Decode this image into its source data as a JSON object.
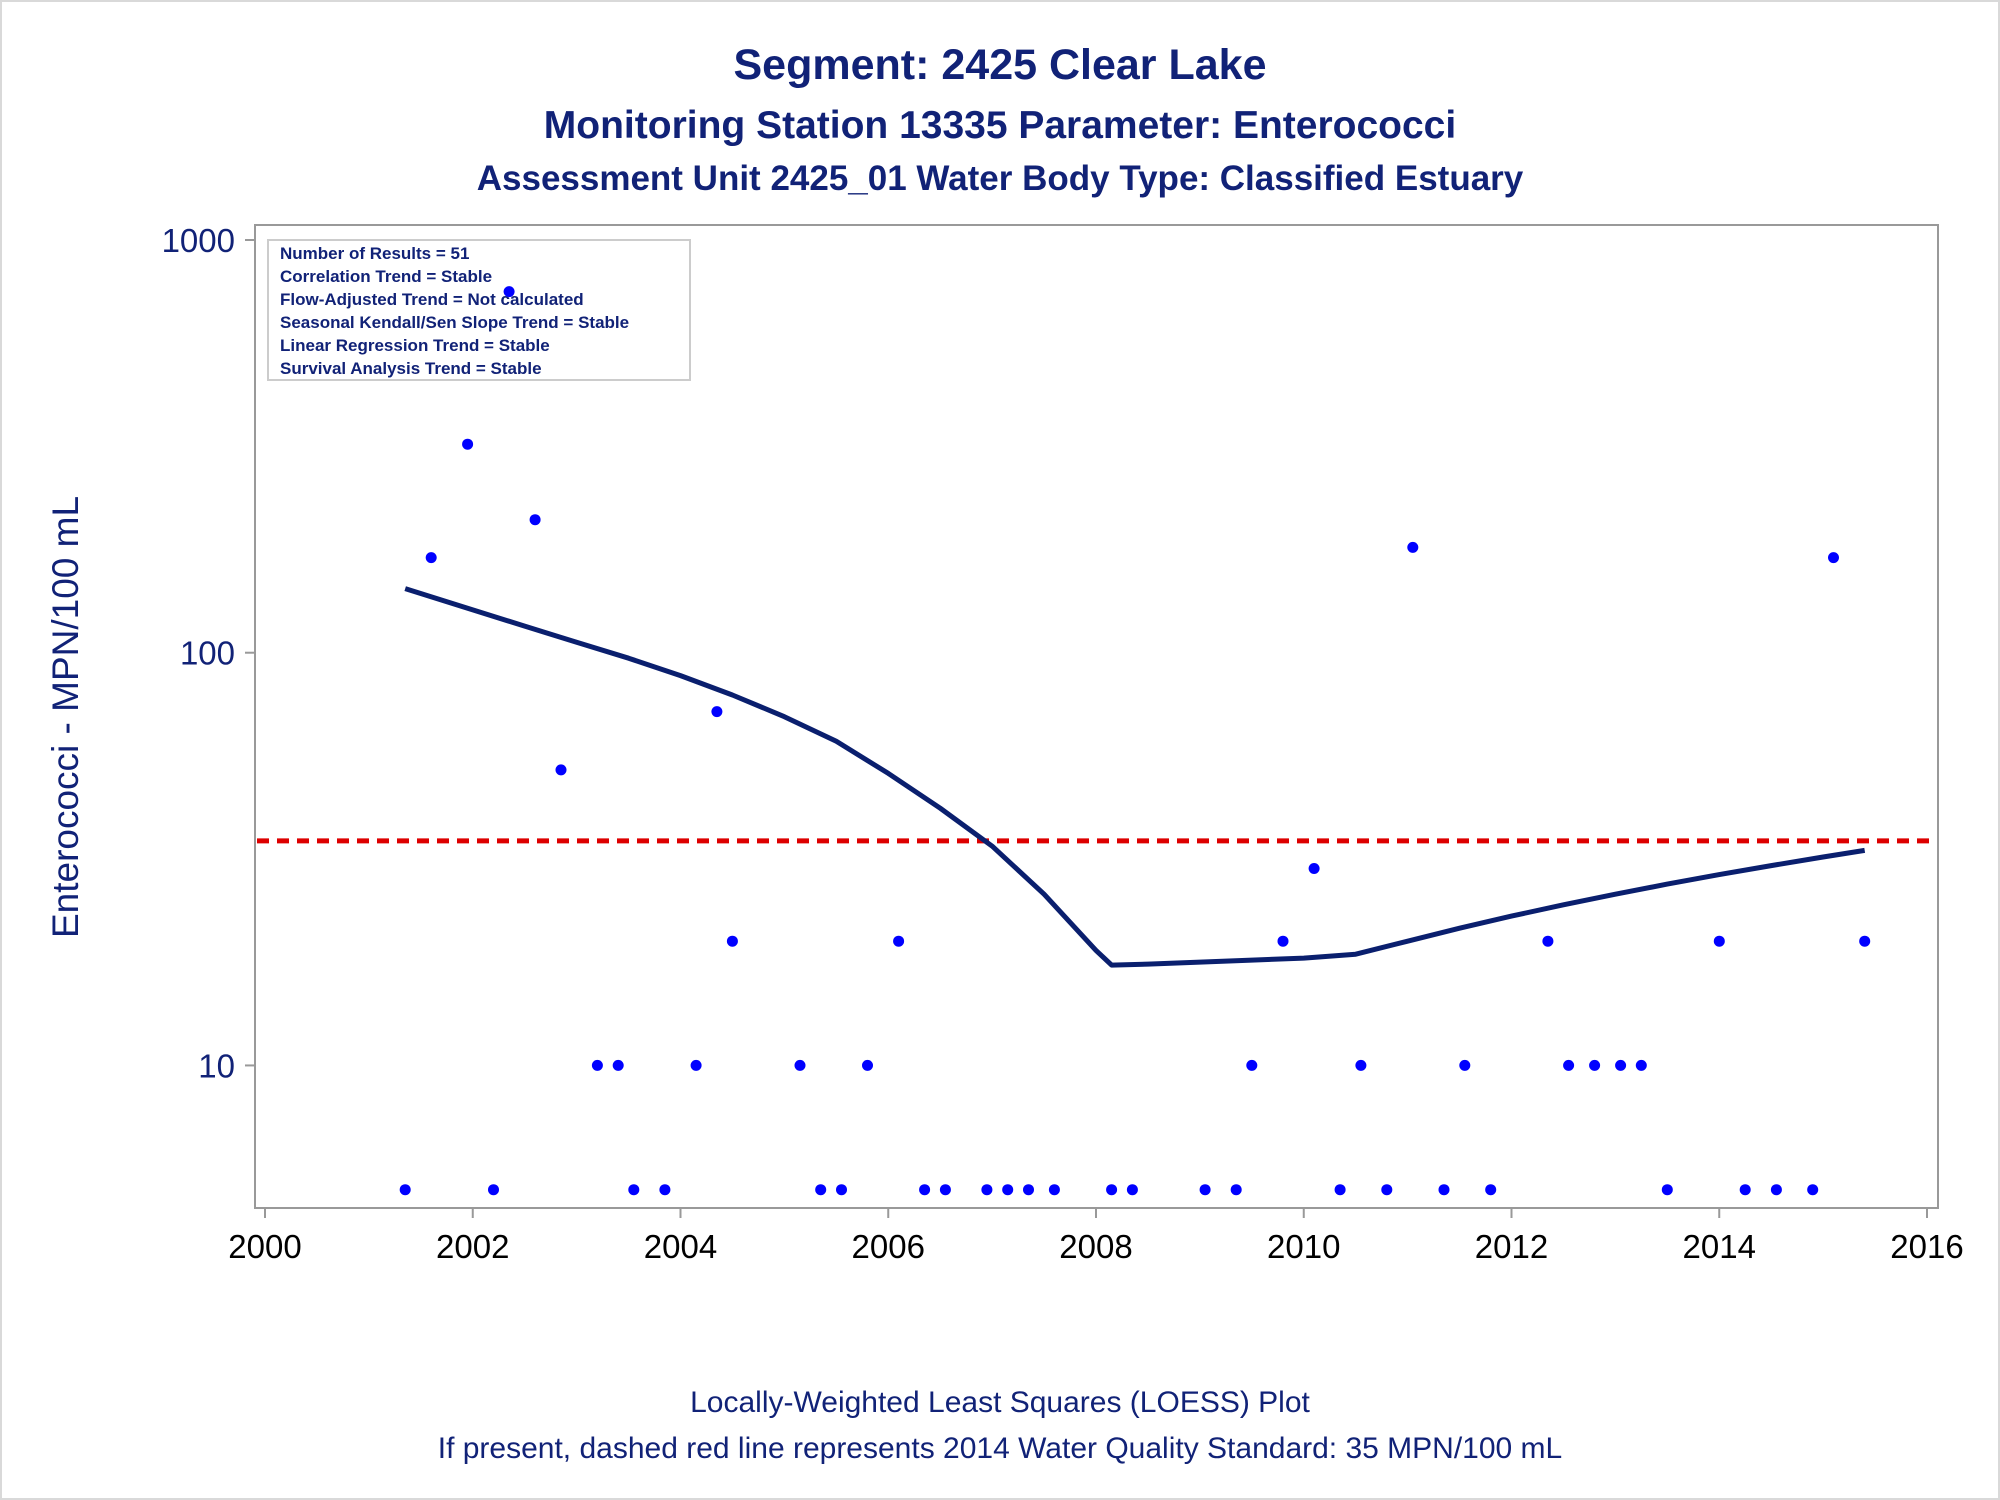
{
  "titles": {
    "line1": "Segment: 2425  Clear Lake",
    "line2": "Monitoring Station 13335 Parameter: Enterococci",
    "line3": "Assessment Unit 2425_01    Water Body Type: Classified Estuary"
  },
  "axes": {
    "ylabel": "Enterococci - MPN/100 mL",
    "xticks": [
      "2000",
      "2002",
      "2004",
      "2006",
      "2008",
      "2010",
      "2012",
      "2014",
      "2016"
    ],
    "yticks": [
      "10",
      "100",
      "1000"
    ]
  },
  "stats_box": [
    "Number of Results = 51",
    "Correlation Trend = Stable",
    "Flow-Adjusted Trend = Not calculated",
    "Seasonal Kendall/Sen Slope Trend = Stable",
    "Linear Regression Trend = Stable",
    "Survival Analysis Trend = Stable"
  ],
  "footnotes": {
    "line1": "Locally-Weighted Least Squares (LOESS) Plot",
    "line2": "If present, dashed red line represents 2014 Water Quality Standard: 35 MPN/100 mL"
  },
  "colors": {
    "points": "#0000ff",
    "loess": "#0a1f6e",
    "standard": "#dd0000",
    "text": "#112277",
    "axis": "#999999"
  },
  "chart_data": {
    "type": "scatter",
    "y_scale": "log",
    "xlim": [
      2000,
      2016
    ],
    "ylim": [
      4.8,
      1000
    ],
    "standard": 35,
    "points": [
      [
        2001.35,
        5
      ],
      [
        2001.6,
        170
      ],
      [
        2001.95,
        320
      ],
      [
        2002.2,
        5
      ],
      [
        2002.35,
        750
      ],
      [
        2002.6,
        210
      ],
      [
        2002.85,
        52
      ],
      [
        2003.2,
        10
      ],
      [
        2003.4,
        10
      ],
      [
        2003.55,
        5
      ],
      [
        2003.85,
        5
      ],
      [
        2004.15,
        10
      ],
      [
        2004.35,
        72
      ],
      [
        2004.5,
        20
      ],
      [
        2005.15,
        10
      ],
      [
        2005.35,
        5
      ],
      [
        2005.55,
        5
      ],
      [
        2005.8,
        10
      ],
      [
        2006.1,
        20
      ],
      [
        2006.35,
        5
      ],
      [
        2006.55,
        5
      ],
      [
        2006.95,
        5
      ],
      [
        2007.15,
        5
      ],
      [
        2007.35,
        5
      ],
      [
        2007.6,
        5
      ],
      [
        2008.15,
        5
      ],
      [
        2008.35,
        5
      ],
      [
        2009.05,
        5
      ],
      [
        2009.35,
        5
      ],
      [
        2009.5,
        10
      ],
      [
        2009.8,
        20
      ],
      [
        2010.1,
        30
      ],
      [
        2010.35,
        5
      ],
      [
        2010.55,
        10
      ],
      [
        2010.8,
        5
      ],
      [
        2011.05,
        180
      ],
      [
        2011.35,
        5
      ],
      [
        2011.55,
        10
      ],
      [
        2011.8,
        5
      ],
      [
        2012.35,
        20
      ],
      [
        2012.55,
        10
      ],
      [
        2012.8,
        10
      ],
      [
        2013.05,
        10
      ],
      [
        2013.25,
        10
      ],
      [
        2013.5,
        5
      ],
      [
        2014.0,
        20
      ],
      [
        2014.25,
        5
      ],
      [
        2014.55,
        5
      ],
      [
        2014.9,
        5
      ],
      [
        2015.1,
        170
      ],
      [
        2015.4,
        20
      ]
    ],
    "loess": [
      [
        2001.35,
        143
      ],
      [
        2002.0,
        127
      ],
      [
        2002.5,
        116
      ],
      [
        2003.0,
        106
      ],
      [
        2003.5,
        97
      ],
      [
        2004.0,
        88
      ],
      [
        2004.5,
        79
      ],
      [
        2005.0,
        70
      ],
      [
        2005.5,
        61
      ],
      [
        2006.0,
        51
      ],
      [
        2006.5,
        42
      ],
      [
        2007.0,
        34
      ],
      [
        2007.5,
        26
      ],
      [
        2008.0,
        19
      ],
      [
        2008.15,
        17.5
      ],
      [
        2008.5,
        17.6
      ],
      [
        2009.0,
        17.8
      ],
      [
        2009.5,
        18.0
      ],
      [
        2010.0,
        18.2
      ],
      [
        2010.5,
        18.6
      ],
      [
        2011.0,
        20.0
      ],
      [
        2011.5,
        21.5
      ],
      [
        2012.0,
        23.0
      ],
      [
        2012.5,
        24.5
      ],
      [
        2013.0,
        26.0
      ],
      [
        2013.5,
        27.5
      ],
      [
        2014.0,
        29.0
      ],
      [
        2014.5,
        30.5
      ],
      [
        2015.0,
        32.0
      ],
      [
        2015.4,
        33.2
      ]
    ]
  }
}
